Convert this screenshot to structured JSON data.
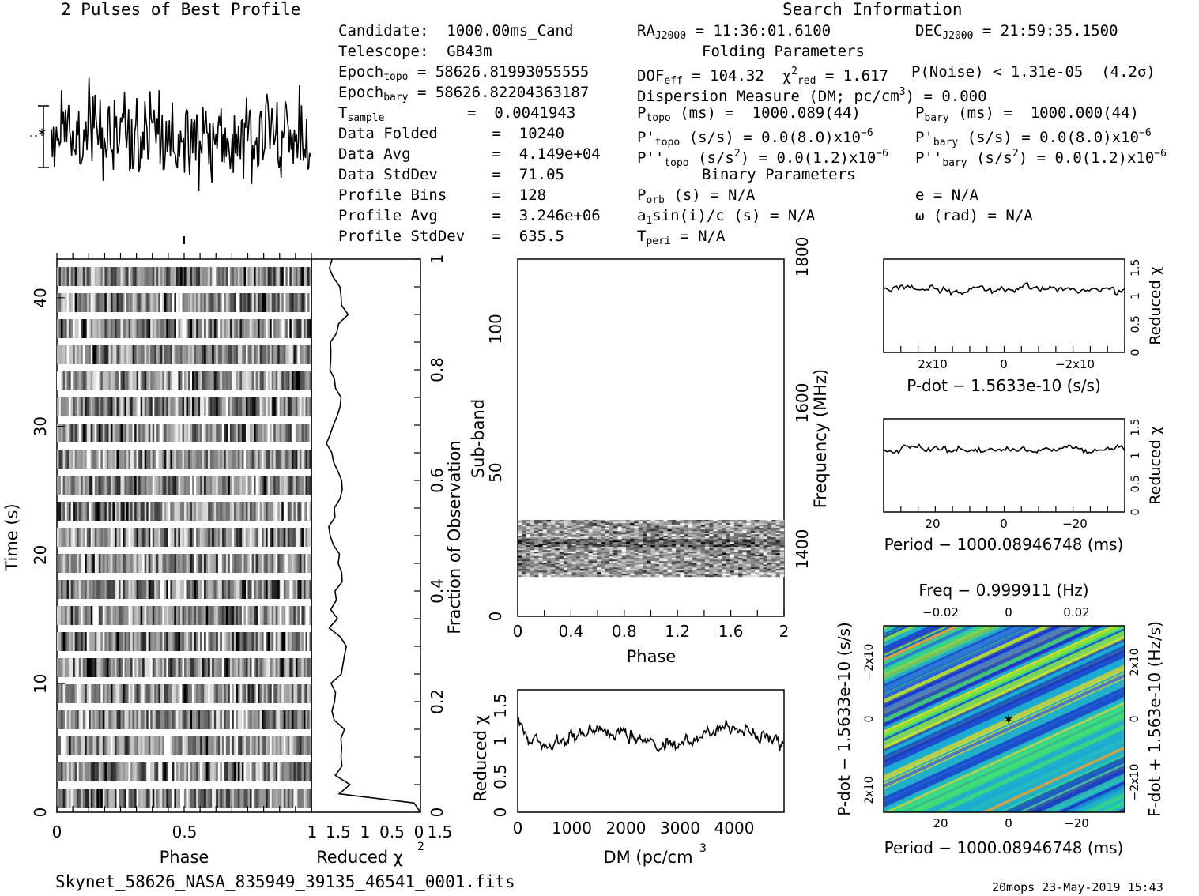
{
  "header": {
    "profile_title": "2 Pulses of Best Profile",
    "search_title": "Search Information",
    "folding_title": "Folding Parameters",
    "binary_title": "Binary Parameters"
  },
  "info": {
    "candidate": "Candidate:  1000.00ms_Cand",
    "telescope": "Telescope:  GB43m",
    "epoch_topo_label": "Epoch",
    "epoch_topo_sub": "topo",
    "epoch_topo_val": " = 58626.81993055555",
    "epoch_bary_label": "Epoch",
    "epoch_bary_sub": "bary",
    "epoch_bary_val": " = 58626.82204363187",
    "tsample_label": "T",
    "tsample_sub": "sample",
    "tsample_val": "=  0.0041943",
    "data_folded": "Data Folded      =  10240",
    "data_avg": "Data Avg         =  4.149e+04",
    "data_stddev": "Data StdDev      =  71.05",
    "profile_bins": "Profile Bins     =  128",
    "profile_avg": "Profile Avg      =  3.246e+06",
    "profile_stddev": "Profile StdDev   =  635.5"
  },
  "search": {
    "ra": "= 11:36:01.6100",
    "dec": "= 21:59:35.1500",
    "dof": "= 104.32",
    "chi2": "= 1.617",
    "pnoise": "P(Noise) < 1.31e-05  (4.2σ)",
    "dm": "Dispersion Measure (DM; pc/cm",
    "dm_val": ") = 0.000",
    "ptopo": "(ms) =  1000.089(44)",
    "pbary": "(ms) =  1000.000(44)",
    "pdtopo": "(s/s) = 0.0(8.0)x10",
    "pdbary": "(s/s) = 0.0(8.0)x10",
    "pddtopo": "(s/s",
    "pddtopo_val": ") = 0.0(1.2)x10",
    "pddbary": "(s/s",
    "pddbary_val": ") = 0.0(1.2)x10",
    "porb": "(s) = N/A",
    "e": "e = N/A",
    "a1": "a",
    "a1_val": "sin(i)/c (s) = N/A",
    "omega": "ω (rad) = N/A",
    "tperi": "= N/A"
  },
  "axes": {
    "time_label": "Time (s)",
    "phase_label": "Phase",
    "redchi_label": "Reduced χ",
    "frac_label": "Fraction of Observation",
    "subband_label": "Sub-band",
    "freq_label": "Frequency (MHz)",
    "phase2_label": "Phase",
    "dm_label": "DM (pc/cm",
    "redchi_dm_label": "Reduced χ",
    "pdot_label": "P-dot − 1.5633e-10 (s/s)",
    "period_label": "Period − 1000.08946748 (ms)",
    "period2_label": "Period − 1000.08946748 (ms)",
    "freq_top_label": "Freq − 0.999911 (Hz)",
    "pdot_left_label": "P-dot − 1.5633e-10 (s/s)",
    "fdot_right_label": "F-dot + 1.563e-10 (Hz/s)",
    "redchi_small1": "Reduced χ",
    "redchi_small2": "Reduced χ"
  },
  "footer": {
    "filename": "Skynet_58626_NASA_835949_39135_46541_0001.fits",
    "stamp": "20mops 23-May-2019 15:43"
  },
  "ticks": {
    "time": [
      "0",
      "10",
      "20",
      "30",
      "40"
    ],
    "phase": [
      "0",
      "0.5",
      "1",
      "1.5"
    ],
    "redchi_x": [
      "1.5",
      "1",
      "0.5",
      "0"
    ],
    "frac": [
      "0",
      "0.2",
      "0.4",
      "0.6",
      "0.8",
      "1"
    ],
    "subband": [
      "0",
      "50",
      "100"
    ],
    "freq": [
      "1400",
      "1600",
      "1800"
    ],
    "phase2": [
      "0",
      "0.4",
      "0.8",
      "1.2",
      "1.6",
      "2"
    ],
    "dm": [
      "0",
      "1000",
      "2000",
      "3000",
      "4000"
    ],
    "redchi_dm": [
      "0",
      "0.5",
      "1",
      "1.5"
    ],
    "redchi_small": [
      "0",
      "0.5",
      "1",
      "1.5"
    ],
    "pdot_x": [
      "2x10",
      "0",
      "−2x10"
    ],
    "period_x": [
      "20",
      "0",
      "−20"
    ],
    "freq_top": [
      "−0.02",
      "0",
      "0.02"
    ],
    "pdot_y": [
      "2x10",
      "0",
      "−2x10"
    ],
    "fdot_y": [
      "2x10",
      "0",
      "−2x10"
    ]
  },
  "chart_data": [
    {
      "type": "line",
      "title": "2 Pulses of Best Profile",
      "x": "Phase (0-2)",
      "values_note": "noisy profile, 256 pts"
    },
    {
      "type": "heatmap",
      "xlabel": "Phase",
      "ylabel": "Time (s)",
      "xlim": [
        0,
        2
      ],
      "ylim": [
        0,
        43
      ]
    },
    {
      "type": "line",
      "xlabel": "Reduced χ2",
      "ylabel": "Fraction of Observation",
      "xlim": [
        1.7,
        0
      ],
      "ylim": [
        0,
        1
      ]
    },
    {
      "type": "heatmap",
      "xlabel": "Phase",
      "ylabel": "Sub-band",
      "xlim": [
        0,
        2
      ],
      "ylim": [
        0,
        128
      ],
      "y2label": "Frequency (MHz)",
      "y2lim": [
        1300,
        1800
      ]
    },
    {
      "type": "line",
      "xlabel": "DM (pc/cm3)",
      "ylabel": "Reduced χ2",
      "xlim": [
        0,
        4900
      ],
      "ylim": [
        0,
        1.7
      ]
    },
    {
      "type": "line",
      "xlabel": "P-dot − 1.5633e-10 (s/s)",
      "ylabel": "Reduced χ2",
      "ylim": [
        0,
        1.7
      ]
    },
    {
      "type": "line",
      "xlabel": "Period − 1000.08946748 (ms)",
      "ylabel": "Reduced χ2",
      "xlim": [
        35,
        -35
      ],
      "ylim": [
        0,
        1.7
      ]
    },
    {
      "type": "heatmap",
      "xlabel": "Period − 1000.08946748 (ms)",
      "ylabel": "P-dot − 1.5633e-10 (s/s)",
      "x2label": "Freq − 0.999911 (Hz)",
      "y2label": "F-dot + 1.563e-10 (Hz/s)"
    }
  ]
}
